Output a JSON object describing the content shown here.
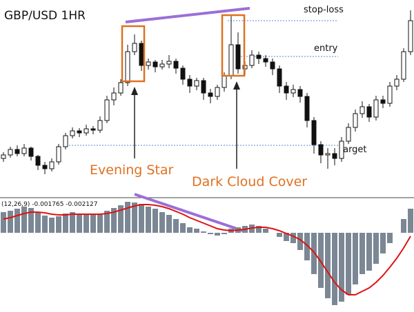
{
  "chart_data": [
    {
      "type": "candlestick",
      "title": "GBP/USD 1HR",
      "open": [
        55,
        60,
        68,
        62,
        70,
        58,
        45,
        40,
        50,
        72,
        88,
        95,
        92,
        98,
        96,
        110,
        140,
        150,
        165,
        210,
        222,
        190,
        195,
        188,
        192,
        196,
        186,
        170,
        160,
        168,
        150,
        145,
        158,
        175,
        220,
        185,
        190,
        205,
        200,
        195,
        185,
        160,
        150,
        155,
        145,
        110,
        75,
        60,
        62,
        55,
        80,
        100,
        120,
        130,
        115,
        140,
        135,
        160,
        170,
        210
      ],
      "high": [
        64,
        72,
        74,
        76,
        72,
        60,
        50,
        55,
        76,
        92,
        100,
        99,
        104,
        102,
        116,
        146,
        158,
        170,
        220,
        235,
        226,
        200,
        198,
        198,
        205,
        200,
        190,
        176,
        172,
        172,
        156,
        162,
        180,
        262,
        238,
        196,
        212,
        210,
        205,
        200,
        190,
        166,
        162,
        160,
        150,
        115,
        80,
        70,
        70,
        86,
        106,
        126,
        138,
        134,
        146,
        146,
        166,
        176,
        215,
        270
      ],
      "low": [
        50,
        56,
        58,
        58,
        52,
        38,
        32,
        36,
        46,
        68,
        84,
        86,
        88,
        90,
        92,
        106,
        132,
        146,
        160,
        205,
        182,
        184,
        180,
        184,
        186,
        178,
        162,
        150,
        154,
        140,
        135,
        140,
        152,
        170,
        178,
        176,
        186,
        192,
        188,
        176,
        150,
        140,
        144,
        136,
        100,
        62,
        48,
        40,
        45,
        50,
        76,
        94,
        114,
        108,
        110,
        128,
        130,
        154,
        166,
        205
      ],
      "close": [
        60,
        68,
        62,
        70,
        58,
        45,
        40,
        50,
        72,
        88,
        95,
        92,
        98,
        96,
        110,
        140,
        150,
        165,
        210,
        222,
        190,
        195,
        188,
        192,
        196,
        186,
        170,
        160,
        168,
        150,
        145,
        158,
        175,
        220,
        185,
        190,
        205,
        200,
        195,
        185,
        160,
        150,
        155,
        145,
        110,
        75,
        60,
        62,
        55,
        80,
        100,
        120,
        130,
        115,
        140,
        135,
        160,
        170,
        210,
        255
      ],
      "colors": {
        "up": "#ffffff",
        "down": "#111111"
      },
      "ylim": [
        0,
        285
      ],
      "levels": [
        {
          "text": "stop-loss",
          "value": 255,
          "color": "#5b86d8"
        },
        {
          "text": "entry",
          "value": 203,
          "color": "#5b86d8"
        },
        {
          "text": "target",
          "value": 74,
          "color": "#5b86d8"
        }
      ],
      "annotations": [
        "Evening Star",
        "Dark Cloud Cover"
      ]
    },
    {
      "type": "bar",
      "title": "(12,26,9) -0.001765 -0.002127",
      "ylim": [
        -115,
        48
      ],
      "series": [
        {
          "type": "bar",
          "color": "#7b8794",
          "values": [
            30,
            32,
            35,
            38,
            36,
            30,
            25,
            22,
            24,
            28,
            30,
            28,
            27,
            26,
            28,
            32,
            36,
            40,
            45,
            44,
            42,
            38,
            35,
            30,
            26,
            20,
            14,
            8,
            6,
            2,
            -2,
            -4,
            -2,
            6,
            8,
            10,
            12,
            10,
            6,
            0,
            -6,
            -12,
            -15,
            -25,
            -40,
            -60,
            -80,
            -95,
            -105,
            -100,
            -90,
            -75,
            -60,
            -55,
            -45,
            -30,
            -15,
            0,
            20,
            35
          ]
        },
        {
          "type": "line",
          "color": "#e01010",
          "values": [
            20,
            22,
            25,
            28,
            30,
            30,
            29,
            27,
            26,
            26,
            27,
            27,
            27,
            27,
            27,
            28,
            30,
            33,
            36,
            39,
            41,
            41,
            40,
            38,
            35,
            31,
            27,
            22,
            18,
            14,
            10,
            6,
            4,
            3,
            4,
            5,
            7,
            8,
            8,
            6,
            3,
            -1,
            -5,
            -10,
            -18,
            -28,
            -42,
            -57,
            -72,
            -83,
            -90,
            -90,
            -85,
            -80,
            -72,
            -62,
            -50,
            -37,
            -22,
            -5
          ]
        }
      ]
    }
  ]
}
